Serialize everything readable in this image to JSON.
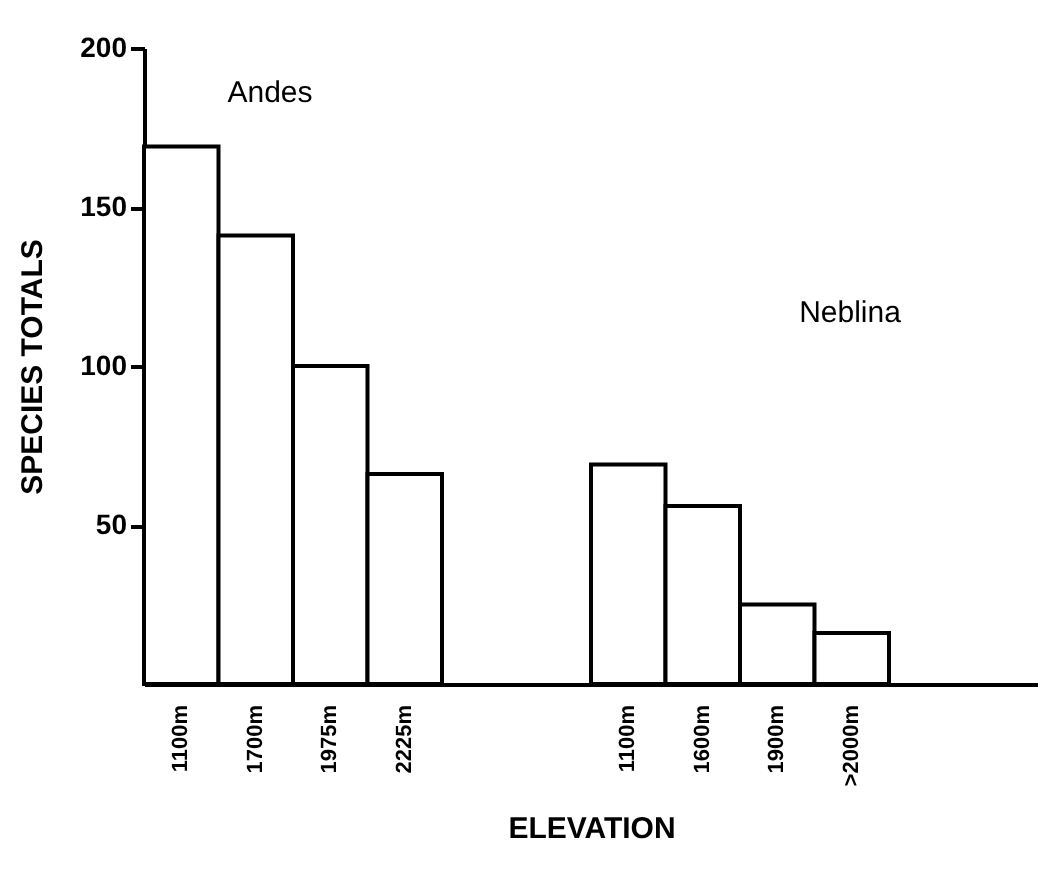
{
  "chart_data": {
    "type": "bar",
    "xlabel": "ELEVATION",
    "ylabel": "SPECIES TOTALS",
    "categories": [
      "1100m",
      "1700m",
      "1975m",
      "2225m",
      null,
      null,
      "1100m",
      "1600m",
      "1900m",
      ">2000m"
    ],
    "values": [
      169,
      141,
      100,
      66,
      null,
      null,
      69,
      56,
      25,
      16
    ],
    "color": "#ffffff",
    "ylim": [
      0,
      200
    ],
    "yticks": [
      50,
      100,
      150,
      200
    ],
    "grid": false,
    "annotations": [
      "Andes",
      "Neblina"
    ]
  }
}
